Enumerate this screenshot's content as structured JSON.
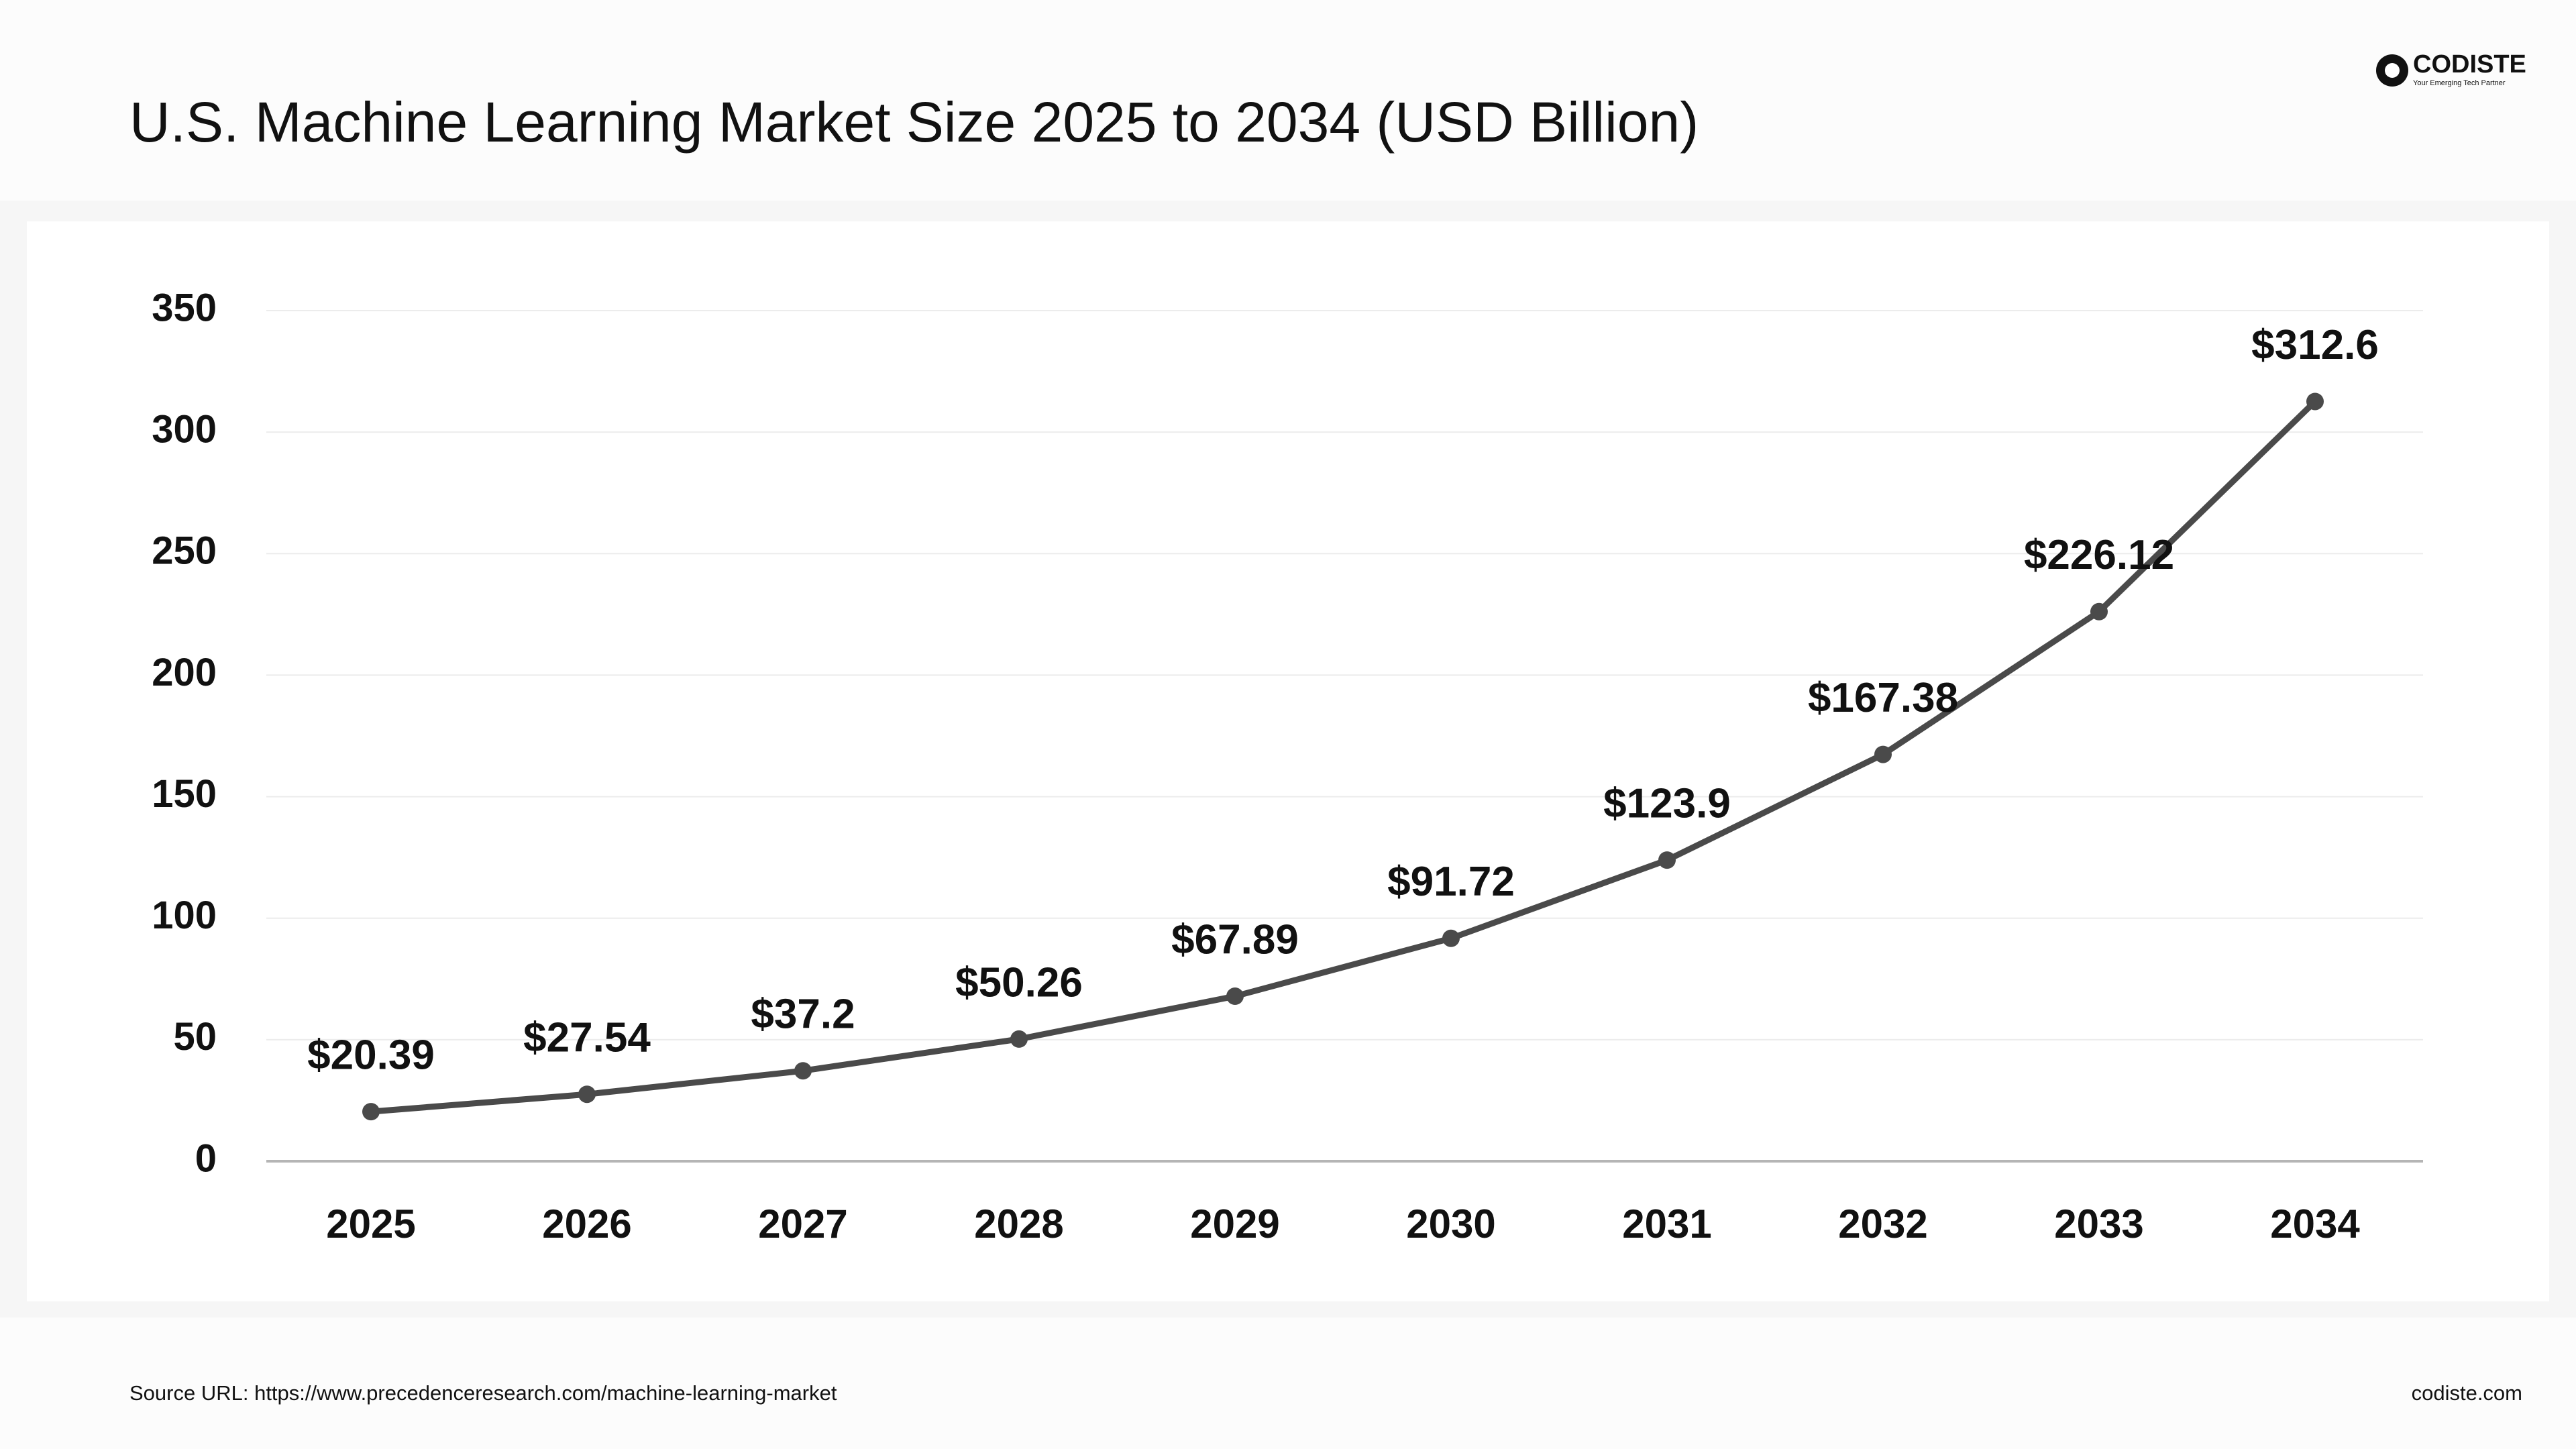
{
  "chart_data": {
    "type": "line",
    "title": "U.S. Machine Learning Market Size 2025 to 2034 (USD Billion)",
    "categories": [
      "2025",
      "2026",
      "2027",
      "2028",
      "2029",
      "2030",
      "2031",
      "2032",
      "2033",
      "2034"
    ],
    "values": [
      20.39,
      27.54,
      37.2,
      50.26,
      67.89,
      91.72,
      123.9,
      167.38,
      226.12,
      312.6
    ],
    "value_labels": [
      "$20.39",
      "$27.54",
      "$37.2",
      "$50.26",
      "$67.89",
      "$91.72",
      "$123.9",
      "$167.38",
      "$226.12",
      "$312.6"
    ],
    "color": "#4a4a4a",
    "ylim": [
      0,
      350
    ],
    "yticks": [
      0,
      50,
      100,
      150,
      200,
      250,
      300,
      350
    ],
    "grid": true
  },
  "logo": {
    "name": "CODISTE",
    "tagline": "Your Emerging Tech Partner"
  },
  "footer": {
    "source": "Source URL: https://www.precedenceresearch.com/machine-learning-market",
    "site": "codiste.com"
  }
}
